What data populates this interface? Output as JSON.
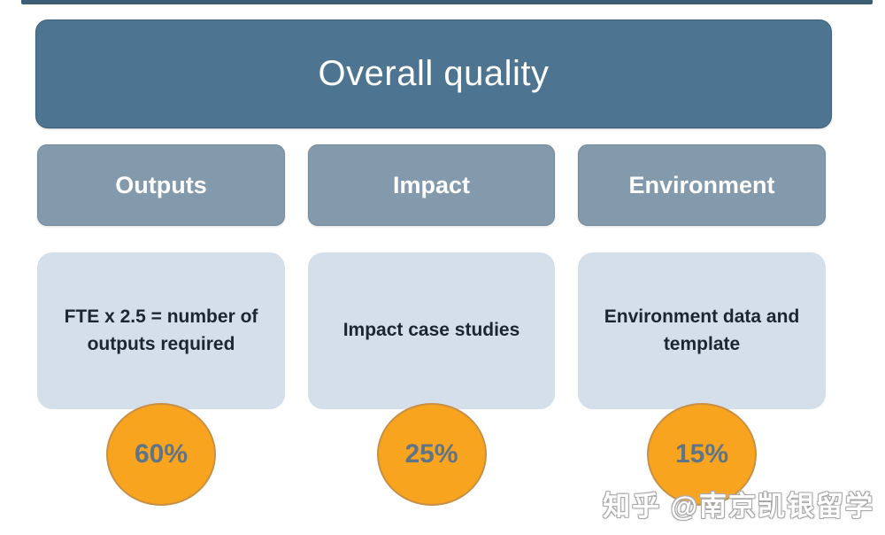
{
  "title": {
    "label": "Overall quality"
  },
  "columns": [
    {
      "header": "Outputs",
      "description": "FTE x 2.5 = number of outputs required",
      "percent": "60%"
    },
    {
      "header": "Impact",
      "description": "Impact case studies",
      "percent": "25%"
    },
    {
      "header": "Environment",
      "description": "Environment data and template",
      "percent": "15%"
    }
  ],
  "watermark": {
    "text": "知乎 @南京凯银留学"
  },
  "colors": {
    "title_box": "#4d7490",
    "header_box": "#8399ac",
    "description_box": "#d5dfe9",
    "circle_fill": "#f9a41f",
    "circle_border": "#c79045",
    "percent_text": "#5f7487",
    "description_text": "#1c2633",
    "top_strip": "#3d5d75",
    "box_text": "#ffffff"
  }
}
